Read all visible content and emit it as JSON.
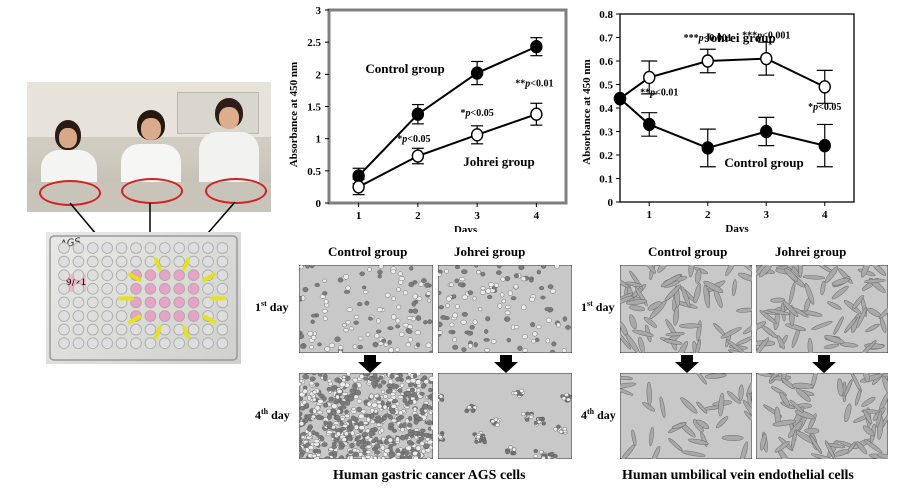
{
  "chart_data": [
    {
      "type": "line",
      "ylabel": "Absorbance at 450 nm",
      "xlabel": "Days",
      "x": [
        1,
        2,
        3,
        4
      ],
      "xticks": [
        "1",
        "2",
        "3",
        "4"
      ],
      "ylim": [
        0,
        3
      ],
      "yticks": [
        "0",
        "0.5",
        "1",
        "1.5",
        "2",
        "2.5",
        "3"
      ],
      "series": [
        {
          "name": "Control group",
          "marker": "filled",
          "values": [
            0.42,
            1.38,
            2.02,
            2.43
          ],
          "err": [
            0.12,
            0.15,
            0.18,
            0.14
          ]
        },
        {
          "name": "Johrei group",
          "marker": "open",
          "values": [
            0.25,
            0.73,
            1.06,
            1.38
          ],
          "err": [
            0.12,
            0.12,
            0.14,
            0.17
          ]
        }
      ],
      "annotations": [
        {
          "x": 2,
          "text": "*p<0.05"
        },
        {
          "x": 3,
          "text": "*p<0.05"
        },
        {
          "x": 4,
          "text": "**p<0.01"
        }
      ]
    },
    {
      "type": "line",
      "ylabel": "Absorbance at 450 nm",
      "xlabel": "Days",
      "x": [
        0.5,
        1,
        2,
        3,
        4
      ],
      "xticks": [
        "1",
        "2",
        "3",
        "4"
      ],
      "ylim": [
        0,
        0.8
      ],
      "yticks": [
        "0",
        "0.1",
        "0.2",
        "0.3",
        "0.4",
        "0.5",
        "0.6",
        "0.7",
        "0.8"
      ],
      "series": [
        {
          "name": "Johrei group",
          "marker": "open",
          "values": [
            0.44,
            0.53,
            0.6,
            0.61,
            0.49
          ],
          "err": [
            0,
            0.07,
            0.05,
            0.07,
            0.07
          ]
        },
        {
          "name": "Control group",
          "marker": "filled",
          "values": [
            0.44,
            0.33,
            0.23,
            0.3,
            0.24
          ],
          "err": [
            0,
            0.05,
            0.08,
            0.06,
            0.09
          ]
        }
      ],
      "annotations": [
        {
          "x": 1,
          "text": "**p<0.01"
        },
        {
          "x": 2,
          "text": "***p<0.001"
        },
        {
          "x": 3,
          "text": "***p<0.001"
        },
        {
          "x": 4,
          "text": "*p<0.05"
        }
      ]
    }
  ],
  "panels": {
    "agsCaption": "Human gastric cancer AGS cells",
    "huvecCaption": "Human umbilical vein endothelial cells",
    "controlHeader": "Control group",
    "johreiHeader": "Johrei group",
    "day1": "1",
    "day1Sup": "st",
    "day4": "4",
    "day4Sup": "th",
    "dayWord": " day"
  },
  "plate": {
    "label": "9/21"
  }
}
